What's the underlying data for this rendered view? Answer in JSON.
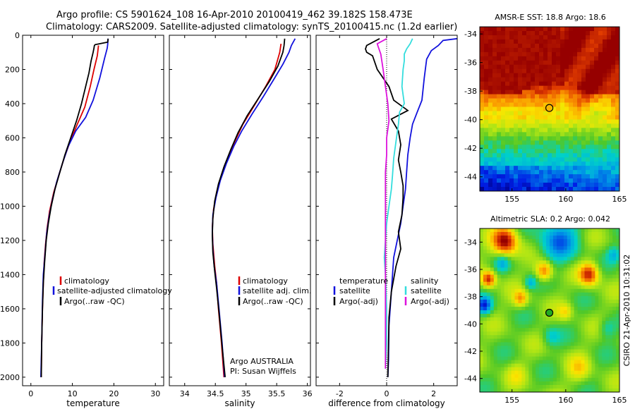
{
  "header": {
    "line1": "Argo profile: CS 5901624_108 16-Apr-2010 20100419_462 39.182S 158.473E",
    "line2": "Climatology: CARS2009. Satellite-adjusted climatology: synTS_20100415.nc (1.2d earlier)"
  },
  "side_label": "CSIRO 21-Apr-2010 10:31:02",
  "chart_data": [
    {
      "id": "temperature",
      "type": "line",
      "xlabel": "temperature",
      "ylabel": "",
      "xlim": [
        -2,
        32
      ],
      "ylim": [
        2050,
        0
      ],
      "xticks": [
        0,
        10,
        20,
        30
      ],
      "yticks": [
        0,
        200,
        400,
        600,
        800,
        1000,
        1200,
        1400,
        1600,
        1800,
        2000
      ],
      "legend": {
        "placement": "bottom-left",
        "entries": [
          "climatology",
          "satellite-adjusted climatology",
          "Argo(..raw -QC)"
        ]
      },
      "series": [
        {
          "name": "climatology",
          "color": "#dd0000",
          "points": [
            [
              16.3,
              60
            ],
            [
              16.0,
              120
            ],
            [
              15.2,
              200
            ],
            [
              14.3,
              300
            ],
            [
              13.0,
              420
            ],
            [
              11.2,
              520
            ],
            [
              9.5,
              620
            ],
            [
              8.0,
              720
            ],
            [
              6.7,
              820
            ],
            [
              5.5,
              920
            ],
            [
              4.5,
              1030
            ],
            [
              3.9,
              1130
            ],
            [
              3.5,
              1230
            ],
            [
              3.2,
              1330
            ],
            [
              3.0,
              1450
            ],
            [
              2.8,
              1600
            ],
            [
              2.6,
              1800
            ],
            [
              2.5,
              2000
            ]
          ]
        },
        {
          "name": "satellite-adjusted climatology",
          "color": "#1111dd",
          "points": [
            [
              18.6,
              20
            ],
            [
              18.5,
              55
            ],
            [
              18.4,
              75
            ],
            [
              17.8,
              130
            ],
            [
              16.6,
              250
            ],
            [
              15.0,
              380
            ],
            [
              13.2,
              480
            ],
            [
              10.8,
              560
            ],
            [
              9.0,
              650
            ],
            [
              7.6,
              750
            ],
            [
              6.2,
              860
            ],
            [
              5.2,
              960
            ],
            [
              4.4,
              1060
            ],
            [
              3.8,
              1160
            ],
            [
              3.4,
              1280
            ],
            [
              3.0,
              1400
            ],
            [
              2.8,
              1550
            ],
            [
              2.6,
              1800
            ],
            [
              2.4,
              2000
            ]
          ]
        },
        {
          "name": "Argo(..raw -QC)",
          "color": "#000000",
          "points": [
            [
              18.6,
              20
            ],
            [
              18.5,
              40
            ],
            [
              16.5,
              50
            ],
            [
              15.5,
              55
            ],
            [
              15.3,
              60
            ],
            [
              15.2,
              75
            ],
            [
              15.0,
              100
            ],
            [
              14.5,
              150
            ],
            [
              14.0,
              220
            ],
            [
              13.2,
              300
            ],
            [
              12.2,
              400
            ],
            [
              11.0,
              500
            ],
            [
              9.6,
              600
            ],
            [
              8.2,
              700
            ],
            [
              7.0,
              800
            ],
            [
              5.8,
              900
            ],
            [
              4.9,
              1000
            ],
            [
              4.2,
              1100
            ],
            [
              3.7,
              1200
            ],
            [
              3.3,
              1330
            ],
            [
              3.0,
              1450
            ],
            [
              2.8,
              1600
            ],
            [
              2.6,
              1800
            ],
            [
              2.5,
              2000
            ]
          ]
        }
      ]
    },
    {
      "id": "salinity",
      "type": "line",
      "xlabel": "salinity",
      "ylabel": "",
      "xlim": [
        33.75,
        36.05
      ],
      "ylim": [
        2050,
        0
      ],
      "xticks": [
        34,
        34.5,
        35,
        35.5,
        36
      ],
      "yticks": [
        0,
        200,
        400,
        600,
        800,
        1000,
        1200,
        1400,
        1600,
        1800,
        2000
      ],
      "legend": {
        "placement": "bottom-right",
        "entries": [
          "climatology",
          "satellite adj. clim.",
          "Argo(..raw -QC)"
        ]
      },
      "annotation": [
        "Argo AUSTRALIA",
        "PI: Susan Wijffels"
      ],
      "series": [
        {
          "name": "climatology",
          "color": "#dd0000",
          "points": [
            [
              35.57,
              50
            ],
            [
              35.55,
              100
            ],
            [
              35.47,
              200
            ],
            [
              35.32,
              300
            ],
            [
              35.12,
              420
            ],
            [
              34.95,
              520
            ],
            [
              34.82,
              620
            ],
            [
              34.7,
              720
            ],
            [
              34.6,
              820
            ],
            [
              34.52,
              920
            ],
            [
              34.47,
              1020
            ],
            [
              34.45,
              1120
            ],
            [
              34.46,
              1220
            ],
            [
              34.49,
              1350
            ],
            [
              34.52,
              1450
            ],
            [
              34.55,
              1600
            ],
            [
              34.6,
              1800
            ],
            [
              34.64,
              2000
            ]
          ]
        },
        {
          "name": "satellite adj. clim.",
          "color": "#1111dd",
          "points": [
            [
              35.8,
              20
            ],
            [
              35.74,
              60
            ],
            [
              35.7,
              100
            ],
            [
              35.6,
              170
            ],
            [
              35.45,
              260
            ],
            [
              35.28,
              360
            ],
            [
              35.1,
              460
            ],
            [
              34.93,
              560
            ],
            [
              34.8,
              650
            ],
            [
              34.68,
              750
            ],
            [
              34.58,
              850
            ],
            [
              34.51,
              950
            ],
            [
              34.46,
              1050
            ],
            [
              34.45,
              1150
            ],
            [
              34.46,
              1250
            ],
            [
              34.48,
              1350
            ],
            [
              34.52,
              1450
            ],
            [
              34.56,
              1600
            ],
            [
              34.61,
              1800
            ],
            [
              34.65,
              2000
            ]
          ]
        },
        {
          "name": "Argo(..raw -QC)",
          "color": "#000000",
          "points": [
            [
              35.63,
              20
            ],
            [
              35.62,
              60
            ],
            [
              35.6,
              100
            ],
            [
              35.52,
              180
            ],
            [
              35.38,
              270
            ],
            [
              35.2,
              370
            ],
            [
              35.02,
              470
            ],
            [
              34.87,
              570
            ],
            [
              34.75,
              670
            ],
            [
              34.64,
              770
            ],
            [
              34.55,
              870
            ],
            [
              34.49,
              970
            ],
            [
              34.46,
              1070
            ],
            [
              34.45,
              1170
            ],
            [
              34.46,
              1270
            ],
            [
              34.49,
              1380
            ],
            [
              34.52,
              1480
            ],
            [
              34.56,
              1620
            ],
            [
              34.61,
              1820
            ],
            [
              34.66,
              2000
            ]
          ]
        }
      ]
    },
    {
      "id": "difference",
      "type": "line",
      "xlabel": "difference from climatology",
      "ylabel": "",
      "xlim": [
        -3,
        3
      ],
      "ylim": [
        2050,
        0
      ],
      "xticks": [
        -2,
        0,
        2
      ],
      "yticks": [
        0,
        200,
        400,
        600,
        800,
        1000,
        1200,
        1400,
        1600,
        1800,
        2000
      ],
      "legend": {
        "placement": "bottom",
        "groups": [
          {
            "title": "temperature",
            "entries": [
              "satellite",
              "Argo(-adj)"
            ]
          },
          {
            "title": "salinity",
            "entries": [
              "satellite",
              "Argo(-adj)"
            ]
          }
        ]
      },
      "series": [
        {
          "name": "temperature satellite",
          "color": "#1111dd",
          "points": [
            [
              3.0,
              20
            ],
            [
              2.4,
              30
            ],
            [
              2.2,
              60
            ],
            [
              1.9,
              90
            ],
            [
              1.7,
              140
            ],
            [
              1.6,
              250
            ],
            [
              1.5,
              380
            ],
            [
              1.3,
              450
            ],
            [
              1.1,
              520
            ],
            [
              1.0,
              600
            ],
            [
              0.9,
              700
            ],
            [
              0.85,
              800
            ],
            [
              0.8,
              900
            ],
            [
              0.7,
              1000
            ],
            [
              0.6,
              1100
            ],
            [
              0.45,
              1200
            ],
            [
              0.3,
              1300
            ],
            [
              0.2,
              1500
            ],
            [
              0.1,
              1700
            ],
            [
              0.08,
              1900
            ],
            [
              0.05,
              2000
            ]
          ]
        },
        {
          "name": "temperature Argo(-adj)",
          "color": "#000000",
          "points": [
            [
              -0.3,
              20
            ],
            [
              -0.85,
              60
            ],
            [
              -0.9,
              80
            ],
            [
              -0.85,
              100
            ],
            [
              -0.6,
              120
            ],
            [
              -0.4,
              200
            ],
            [
              0.1,
              300
            ],
            [
              0.3,
              380
            ],
            [
              0.9,
              440
            ],
            [
              0.2,
              490
            ],
            [
              0.5,
              560
            ],
            [
              0.6,
              640
            ],
            [
              0.5,
              730
            ],
            [
              0.6,
              800
            ],
            [
              0.7,
              880
            ],
            [
              0.7,
              950
            ],
            [
              0.65,
              1050
            ],
            [
              0.5,
              1150
            ],
            [
              0.6,
              1250
            ],
            [
              0.4,
              1350
            ],
            [
              0.2,
              1500
            ],
            [
              0.1,
              1650
            ],
            [
              0.08,
              1800
            ],
            [
              0.05,
              2000
            ]
          ]
        },
        {
          "name": "salinity satellite",
          "color": "#33dddd",
          "points": [
            [
              1.1,
              20
            ],
            [
              1.0,
              50
            ],
            [
              0.85,
              80
            ],
            [
              0.75,
              110
            ],
            [
              0.75,
              150
            ],
            [
              0.7,
              200
            ],
            [
              0.65,
              300
            ],
            [
              0.75,
              400
            ],
            [
              0.55,
              450
            ],
            [
              0.5,
              520
            ],
            [
              0.4,
              620
            ],
            [
              0.3,
              720
            ],
            [
              0.25,
              820
            ],
            [
              0.2,
              900
            ],
            [
              0.1,
              1000
            ],
            [
              0.0,
              1100
            ],
            [
              -0.05,
              1200
            ],
            [
              -0.1,
              1300
            ],
            [
              -0.05,
              1400
            ],
            [
              0.0,
              1600
            ],
            [
              0.0,
              1800
            ],
            [
              -0.05,
              1950
            ]
          ]
        },
        {
          "name": "salinity Argo(-adj)",
          "color": "#dd11dd",
          "points": [
            [
              0.0,
              20
            ],
            [
              -0.4,
              50
            ],
            [
              -0.35,
              70
            ],
            [
              -0.25,
              110
            ],
            [
              -0.15,
              200
            ],
            [
              -0.05,
              300
            ],
            [
              0.05,
              400
            ],
            [
              0.1,
              500
            ],
            [
              0.0,
              600
            ],
            [
              0.0,
              700
            ],
            [
              -0.05,
              800
            ],
            [
              -0.05,
              900
            ],
            [
              -0.05,
              1000
            ],
            [
              -0.05,
              1200
            ],
            [
              -0.05,
              1400
            ],
            [
              -0.05,
              1600
            ],
            [
              -0.05,
              1800
            ],
            [
              -0.05,
              1950
            ]
          ]
        }
      ]
    },
    {
      "id": "sst-map",
      "type": "heatmap",
      "title": "AMSR-E SST: 18.8 Argo: 18.6",
      "xlim": [
        152,
        165
      ],
      "ylim": [
        -45,
        -33.5
      ],
      "xticks": [
        155,
        160,
        165
      ],
      "yticks": [
        -34,
        -36,
        -38,
        -40,
        -42,
        -44
      ],
      "marker": {
        "lon": 158.473,
        "lat": -39.182,
        "fill": "none"
      }
    },
    {
      "id": "sla-map",
      "type": "heatmap",
      "title": "Altimetric SLA: 0.2 Argo: 0.042",
      "xlim": [
        152,
        165
      ],
      "ylim": [
        -45,
        -33
      ],
      "xticks": [
        155,
        160,
        165
      ],
      "yticks": [
        -34,
        -36,
        -38,
        -40,
        -42,
        -44
      ],
      "marker": {
        "lon": 158.473,
        "lat": -39.182,
        "fill": "#22aa22"
      }
    }
  ]
}
